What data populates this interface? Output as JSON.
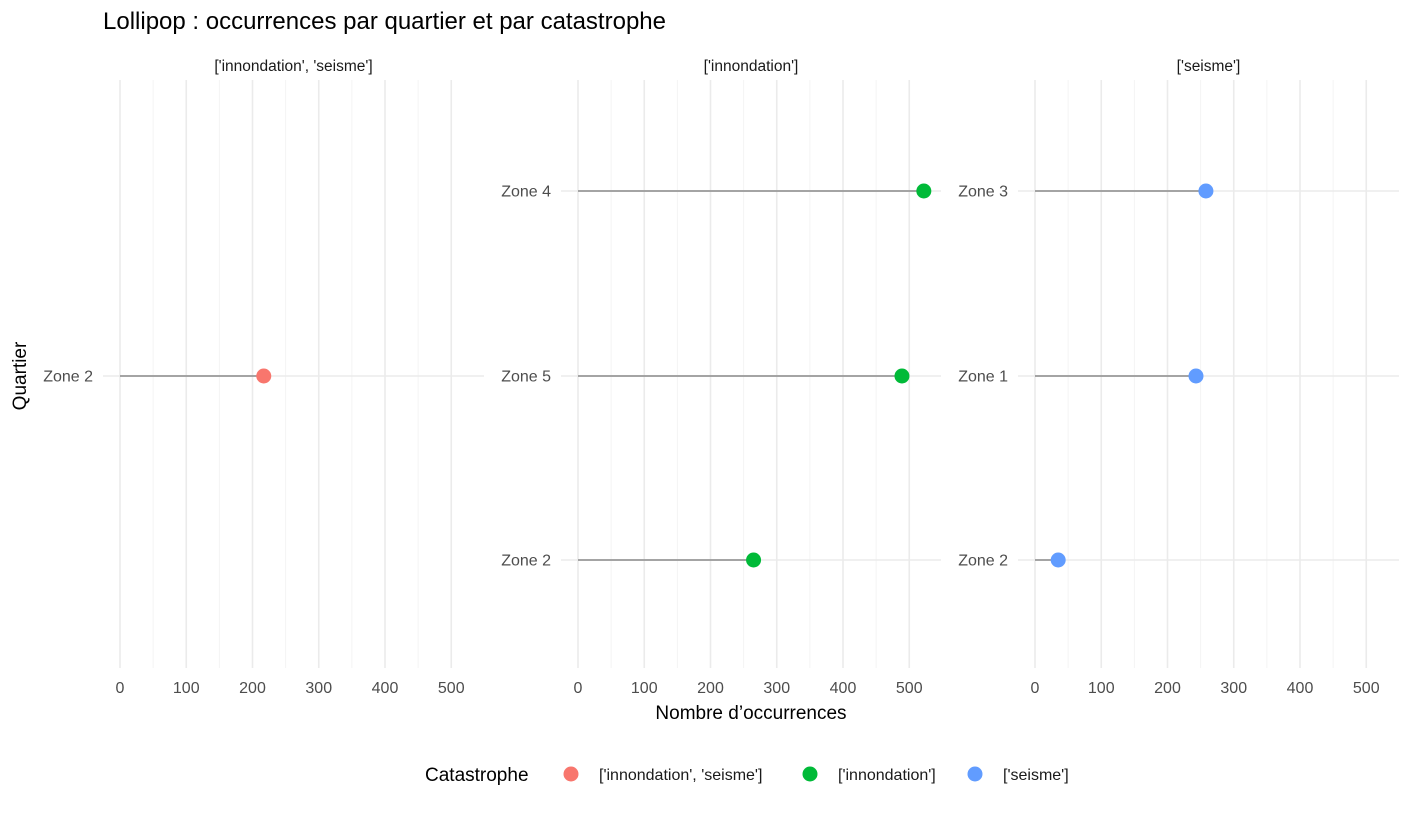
{
  "chart_data": {
    "type": "lollipop",
    "title": "Lollipop : occurrences par quartier et par catastrophe",
    "xlabel": "Nombre d’occurrences",
    "ylabel": "Quartier",
    "xlim": [
      0,
      520
    ],
    "x_ticks": [
      0,
      100,
      200,
      300,
      400,
      500
    ],
    "grid": true,
    "legend": {
      "title": "Catastrophe",
      "position": "bottom",
      "entries": [
        {
          "label": "['innondation', 'seisme']",
          "color": "#F8766D"
        },
        {
          "label": "['innondation']",
          "color": "#00BA38"
        },
        {
          "label": "['seisme']",
          "color": "#619CFF"
        }
      ]
    },
    "panels": [
      {
        "strip": "['innondation', 'seisme']",
        "color": "#F8766D",
        "points": [
          {
            "quartier": "Zone 2",
            "value": 217
          }
        ]
      },
      {
        "strip": "['innondation']",
        "color": "#00BA38",
        "points": [
          {
            "quartier": "Zone 4",
            "value": 522
          },
          {
            "quartier": "Zone 5",
            "value": 489
          },
          {
            "quartier": "Zone 2",
            "value": 265
          }
        ]
      },
      {
        "strip": "['seisme']",
        "color": "#619CFF",
        "points": [
          {
            "quartier": "Zone 3",
            "value": 258
          },
          {
            "quartier": "Zone 1",
            "value": 243
          },
          {
            "quartier": "Zone 2",
            "value": 35
          }
        ]
      }
    ]
  }
}
